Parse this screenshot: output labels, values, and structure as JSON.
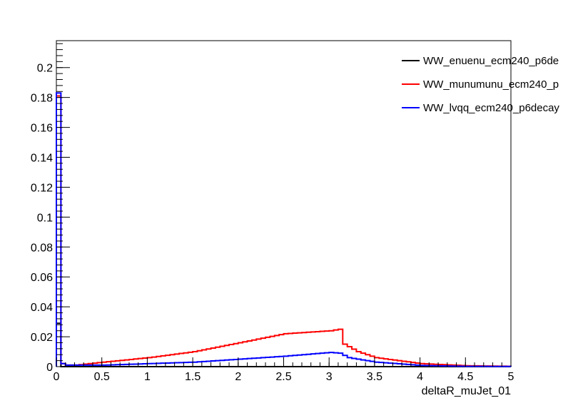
{
  "chart_data": {
    "type": "histogram-step",
    "title": "",
    "xlabel": "deltaR_muJet_01",
    "ylabel": "",
    "xlim": [
      0,
      5
    ],
    "ylim": [
      0,
      0.218
    ],
    "x_ticks": [
      0,
      0.5,
      1,
      1.5,
      2,
      2.5,
      3,
      3.5,
      4,
      4.5,
      5
    ],
    "x_tick_labels": [
      "0",
      "0.5",
      "1",
      "1.5",
      "2",
      "2.5",
      "3",
      "3.5",
      "4",
      "4.5",
      "5"
    ],
    "y_ticks": [
      0,
      0.02,
      0.04,
      0.06,
      0.08,
      0.1,
      0.12,
      0.14,
      0.16,
      0.18,
      0.2
    ],
    "y_tick_labels": [
      "0",
      "0.02",
      "0.04",
      "0.06",
      "0.08",
      "0.1",
      "0.12",
      "0.14",
      "0.16",
      "0.18",
      "0.2"
    ],
    "bin_width": 0.05,
    "grid": false,
    "legend_position": "top-right",
    "series": [
      {
        "name": "WW_enuenu_ecm240_p6de",
        "color": "#000000",
        "anchors": [
          [
            0,
            0.029
          ],
          [
            0.05,
            0
          ],
          [
            5,
            0
          ]
        ]
      },
      {
        "name": "WW_munumunu_ecm240_p",
        "color": "#ff0000",
        "anchors": [
          [
            0,
            0.181
          ],
          [
            0.05,
            0.002
          ],
          [
            0.1,
            0.001
          ],
          [
            0.2,
            0.001
          ],
          [
            0.5,
            0.003
          ],
          [
            1.0,
            0.006
          ],
          [
            1.5,
            0.01
          ],
          [
            2.0,
            0.016
          ],
          [
            2.5,
            0.022
          ],
          [
            3.0,
            0.024
          ],
          [
            3.1,
            0.025
          ],
          [
            3.15,
            0.015
          ],
          [
            3.3,
            0.01
          ],
          [
            3.5,
            0.006
          ],
          [
            4.0,
            0.002
          ],
          [
            4.5,
            0.0006
          ],
          [
            5.0,
            0.0002
          ]
        ]
      },
      {
        "name": "WW_lvqq_ecm240_p6decay",
        "color": "#0000ff",
        "anchors": [
          [
            0,
            0.183
          ],
          [
            0.05,
            0.002
          ],
          [
            0.1,
            0.001
          ],
          [
            0.5,
            0.001
          ],
          [
            1.0,
            0.002
          ],
          [
            1.5,
            0.003
          ],
          [
            2.0,
            0.005
          ],
          [
            2.5,
            0.007
          ],
          [
            2.9,
            0.009
          ],
          [
            3.0,
            0.0095
          ],
          [
            3.1,
            0.009
          ],
          [
            3.2,
            0.006
          ],
          [
            3.5,
            0.003
          ],
          [
            4.0,
            0.0008
          ],
          [
            4.5,
            0.0002
          ],
          [
            5.0,
            0.0001
          ]
        ]
      }
    ]
  }
}
